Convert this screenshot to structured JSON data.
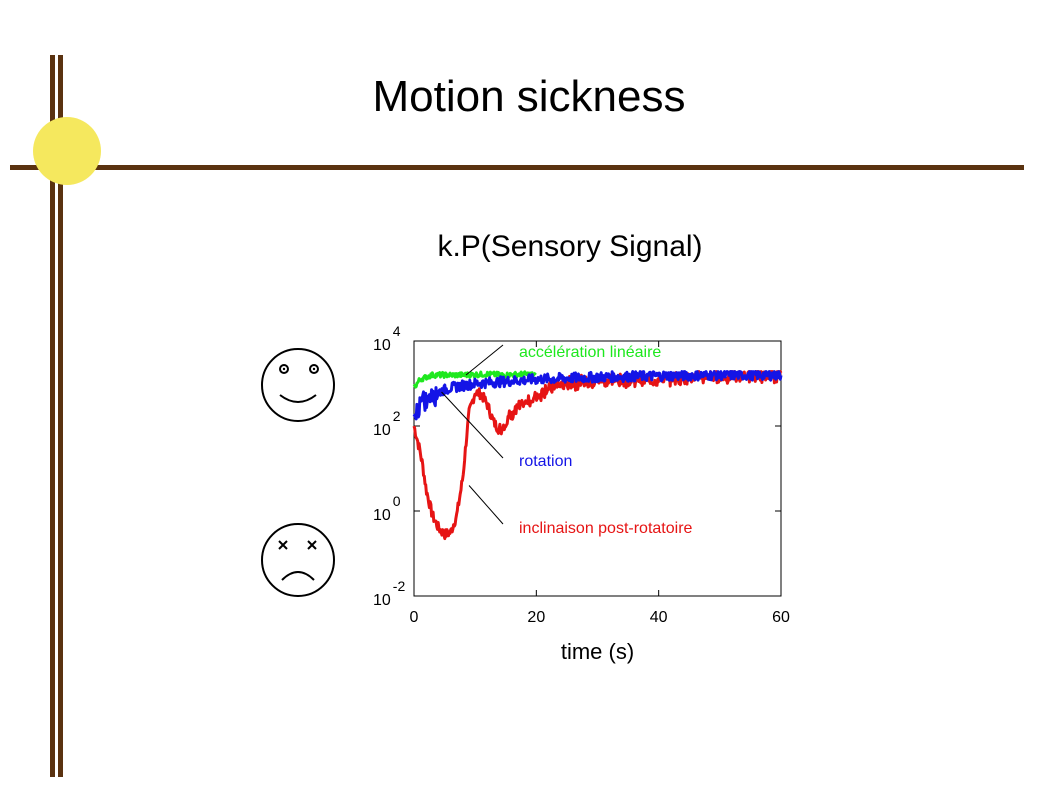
{
  "slide": {
    "title": "Motion sickness",
    "subtitle": "k.P(Sensory Signal)"
  },
  "colors": {
    "decor_bar": "#5a3210",
    "decor_dot": "#f5e85e",
    "series_green": "#1ee81e",
    "series_blue": "#1414e6",
    "series_red": "#e61414"
  },
  "icons": {
    "happy": "smiley-face-icon",
    "sick": "sick-face-icon"
  },
  "chart_data": {
    "type": "line",
    "xlabel": "time (s)",
    "ylabel": "",
    "xlim": [
      0,
      60
    ],
    "ylim_log10": [
      -2,
      4
    ],
    "y_scale": "log",
    "x_ticks": [
      0,
      20,
      40,
      60
    ],
    "y_ticks": [
      {
        "base": "10",
        "exp": "4",
        "value_log10": 4
      },
      {
        "base": "10",
        "exp": "2",
        "value_log10": 2
      },
      {
        "base": "10",
        "exp": "0",
        "value_log10": 0
      },
      {
        "base": "10",
        "exp": "-2",
        "value_log10": -2
      }
    ],
    "series": [
      {
        "name": "accélération linéaire",
        "color": "#1ee81e",
        "x": [
          0,
          1,
          2,
          3,
          5,
          8,
          12,
          15,
          18,
          20
        ],
        "y_log10": [
          2.9,
          3.1,
          3.15,
          3.2,
          3.2,
          3.2,
          3.22,
          3.2,
          3.22,
          3.2
        ]
      },
      {
        "name": "rotation",
        "color": "#1414e6",
        "x": [
          0,
          1,
          2,
          3,
          4,
          6,
          8,
          10,
          15,
          20,
          30,
          40,
          50,
          60
        ],
        "y_log10": [
          2.2,
          2.5,
          2.6,
          2.75,
          2.8,
          2.9,
          2.95,
          3.0,
          3.05,
          3.1,
          3.15,
          3.18,
          3.2,
          3.2
        ]
      },
      {
        "name": "inclinaison post-rotatoire",
        "color": "#e61414",
        "x": [
          0,
          0.5,
          1,
          1.5,
          2,
          3,
          4,
          5,
          6,
          7,
          8,
          8.5,
          9,
          10,
          11,
          12,
          13,
          14,
          15,
          16,
          18,
          20,
          22,
          25,
          30,
          35,
          40,
          45,
          50,
          55,
          60
        ],
        "y_log10": [
          2.0,
          1.7,
          1.4,
          1.0,
          0.5,
          -0.1,
          -0.4,
          -0.55,
          -0.5,
          -0.1,
          0.8,
          1.6,
          2.3,
          2.8,
          2.75,
          2.5,
          2.1,
          1.9,
          2.1,
          2.3,
          2.5,
          2.7,
          2.9,
          3.0,
          3.05,
          3.1,
          3.1,
          3.15,
          3.15,
          3.2,
          3.2
        ]
      }
    ],
    "annotations": [
      {
        "text": "accélération linéaire",
        "color": "#1ee81e",
        "target_x": 8.5,
        "target_y_log10": 3.2
      },
      {
        "text": "rotation",
        "color": "#1414e6",
        "target_x": 4.5,
        "target_y_log10": 2.8
      },
      {
        "text": "inclinaison post-rotatoire",
        "color": "#e61414",
        "target_x": 9,
        "target_y_log10": 0.6
      }
    ],
    "grid": false,
    "legend": "inline-annotations"
  }
}
